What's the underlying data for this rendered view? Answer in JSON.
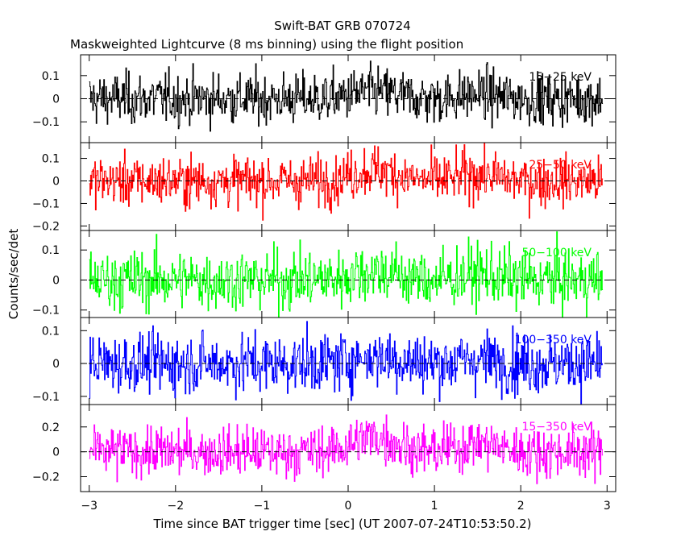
{
  "chart_data": {
    "type": "line",
    "title": "Swift-BAT GRB 070724",
    "subtitle": "Maskweighted Lightcurve (8 ms binning) using the flight position",
    "xlabel": "Time since BAT trigger time [sec] (UT 2007-07-24T10:53:50.2)",
    "ylabel": "Counts/sec/det",
    "xlim": [
      -3.1,
      3.1
    ],
    "x_ticks": [
      "−3",
      "−2",
      "−1",
      "0",
      "1",
      "2",
      "3"
    ],
    "x_tick_values": [
      -3,
      -2,
      -1,
      0,
      1,
      2,
      3
    ],
    "bin_width_sec": 0.008,
    "data_xrange": [
      -3.0,
      2.95
    ],
    "grid": false,
    "series": [
      {
        "name": "15−25 keV",
        "color": "#000000",
        "ylim": [
          -0.19,
          0.19
        ],
        "y_ticks": [
          "0.1",
          "0",
          "−0.1"
        ],
        "y_tick_values": [
          0.1,
          0,
          -0.1
        ],
        "noise_sigma": 0.055,
        "peak_amp": 0.03
      },
      {
        "name": "25−50 keV",
        "color": "#ff0000",
        "ylim": [
          -0.22,
          0.17
        ],
        "y_ticks": [
          "0.1",
          "0",
          "−0.1",
          "−0.2"
        ],
        "y_tick_values": [
          0.1,
          0,
          -0.1,
          -0.2
        ],
        "noise_sigma": 0.055,
        "peak_amp": 0.05
      },
      {
        "name": "50−100 keV",
        "color": "#00ff00",
        "ylim": [
          -0.125,
          0.165
        ],
        "y_ticks": [
          "0.1",
          "0",
          "−0.1"
        ],
        "y_tick_values": [
          0.1,
          0,
          -0.1
        ],
        "noise_sigma": 0.05,
        "peak_amp": 0.03
      },
      {
        "name": "100−350 keV",
        "color": "#0000ff",
        "ylim": [
          -0.125,
          0.14
        ],
        "y_ticks": [
          "0.1",
          "0",
          "−0.1"
        ],
        "y_tick_values": [
          0.1,
          0,
          -0.1
        ],
        "noise_sigma": 0.045,
        "peak_amp": 0.02
      },
      {
        "name": "15−350 keV",
        "color": "#ff00ff",
        "ylim": [
          -0.32,
          0.38
        ],
        "y_ticks": [
          "0.2",
          "0",
          "−0.2"
        ],
        "y_tick_values": [
          0.2,
          0,
          -0.2
        ],
        "noise_sigma": 0.1,
        "peak_amp": 0.12
      }
    ]
  }
}
